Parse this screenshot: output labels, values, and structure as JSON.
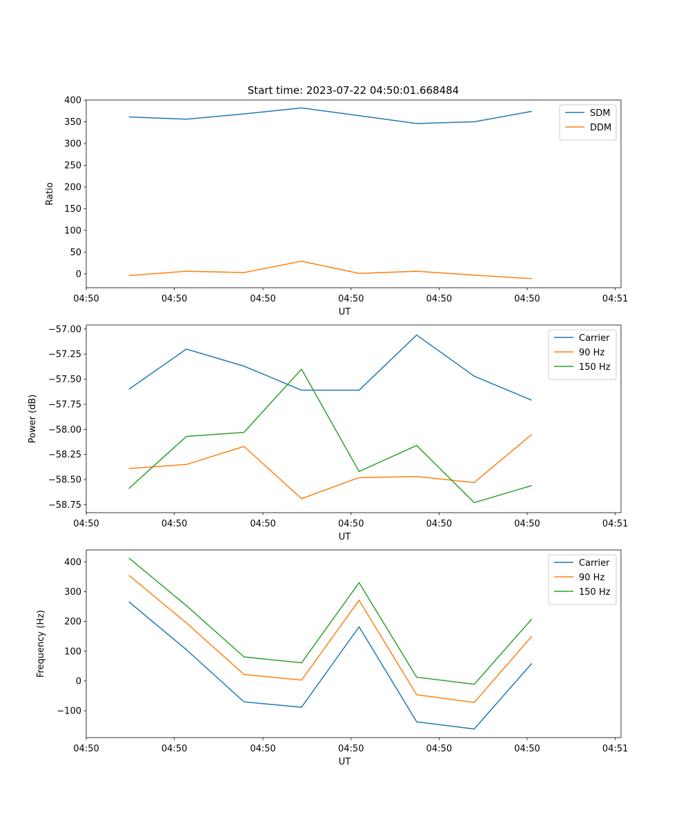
{
  "figure_title": "Start time: 2023-07-22 04:50:01.668484",
  "colors": {
    "blue": "#1f77b4",
    "orange": "#ff7f0e",
    "green": "#2ca02c"
  },
  "chart_data": [
    {
      "type": "line",
      "title": "Start time: 2023-07-22 04:50:01.668484",
      "xlabel": "UT",
      "ylabel": "Ratio",
      "x": [
        0,
        1,
        2,
        3,
        4,
        5,
        6,
        7
      ],
      "xlim": [
        -0.74,
        8.55
      ],
      "ylim": [
        -32,
        400
      ],
      "x_ticks": [
        -0.74,
        0.79,
        2.33,
        3.86,
        5.39,
        6.92,
        8.45
      ],
      "x_tick_labels": [
        "04:50",
        "04:50",
        "04:50",
        "04:50",
        "04:50",
        "04:50",
        "04:51"
      ],
      "y_ticks": [
        0,
        50,
        100,
        150,
        200,
        250,
        300,
        350,
        400
      ],
      "y_tick_labels": [
        "0",
        "50",
        "100",
        "150",
        "200",
        "250",
        "300",
        "350",
        "400"
      ],
      "legend_position": "top-right",
      "series": [
        {
          "name": "SDM",
          "color": "#1f77b4",
          "values": [
            361,
            356,
            368,
            382,
            364,
            346,
            350,
            374
          ]
        },
        {
          "name": "DDM",
          "color": "#ff7f0e",
          "values": [
            -4,
            6,
            3,
            29,
            1,
            6,
            -3,
            -11
          ]
        }
      ]
    },
    {
      "type": "line",
      "title": "",
      "xlabel": "UT",
      "ylabel": "Power (dB)",
      "x": [
        0,
        1,
        2,
        3,
        4,
        5,
        6,
        7
      ],
      "xlim": [
        -0.74,
        8.55
      ],
      "ylim": [
        -58.83,
        -56.96
      ],
      "x_ticks": [
        -0.74,
        0.79,
        2.33,
        3.86,
        5.39,
        6.92,
        8.45
      ],
      "x_tick_labels": [
        "04:50",
        "04:50",
        "04:50",
        "04:50",
        "04:50",
        "04:50",
        "04:51"
      ],
      "y_ticks": [
        -58.75,
        -58.5,
        -58.25,
        -58.0,
        -57.75,
        -57.5,
        -57.25,
        -57.0
      ],
      "y_tick_labels": [
        "−58.75",
        "−58.50",
        "−58.25",
        "−58.00",
        "−57.75",
        "−57.50",
        "−57.25",
        "−57.00"
      ],
      "legend_position": "top-right",
      "series": [
        {
          "name": "Carrier",
          "color": "#1f77b4",
          "values": [
            -57.6,
            -57.2,
            -57.37,
            -57.61,
            -57.61,
            -57.06,
            -57.47,
            -57.71
          ]
        },
        {
          "name": "90 Hz",
          "color": "#ff7f0e",
          "values": [
            -58.39,
            -58.35,
            -58.17,
            -58.69,
            -58.48,
            -58.47,
            -58.53,
            -58.05
          ]
        },
        {
          "name": "150 Hz",
          "color": "#2ca02c",
          "values": [
            -58.59,
            -58.07,
            -58.03,
            -57.4,
            -58.42,
            -58.16,
            -58.73,
            -58.56
          ]
        }
      ]
    },
    {
      "type": "line",
      "title": "",
      "xlabel": "UT",
      "ylabel": "Frequency (Hz)",
      "x": [
        0,
        1,
        2,
        3,
        4,
        5,
        6,
        7
      ],
      "xlim": [
        -0.74,
        8.55
      ],
      "ylim": [
        -190,
        440
      ],
      "x_ticks": [
        -0.74,
        0.79,
        2.33,
        3.86,
        5.39,
        6.92,
        8.45
      ],
      "x_tick_labels": [
        "04:50",
        "04:50",
        "04:50",
        "04:50",
        "04:50",
        "04:50",
        "04:51"
      ],
      "y_ticks": [
        -100,
        0,
        100,
        200,
        300,
        400
      ],
      "y_tick_labels": [
        "−100",
        "0",
        "100",
        "200",
        "300",
        "400"
      ],
      "legend_position": "top-right",
      "series": [
        {
          "name": "Carrier",
          "color": "#1f77b4",
          "values": [
            266,
            105,
            -70,
            -88,
            182,
            -137,
            -161,
            59
          ]
        },
        {
          "name": "90 Hz",
          "color": "#ff7f0e",
          "values": [
            355,
            195,
            22,
            3,
            271,
            -46,
            -72,
            150
          ]
        },
        {
          "name": "150 Hz",
          "color": "#2ca02c",
          "values": [
            413,
            253,
            81,
            61,
            330,
            13,
            -11,
            208
          ]
        }
      ]
    }
  ]
}
